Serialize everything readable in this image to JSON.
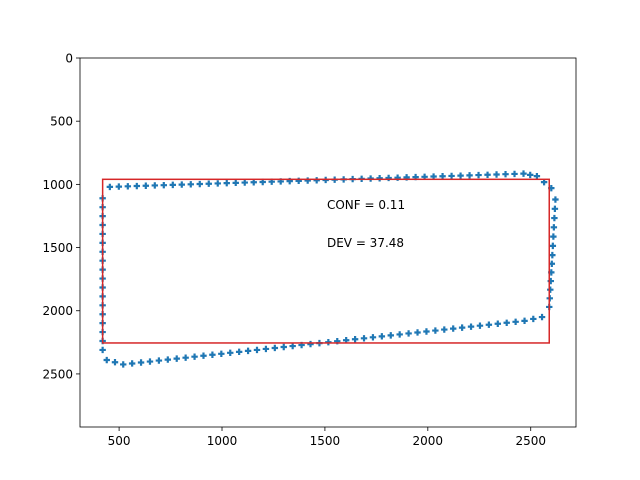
{
  "chart_data": {
    "type": "scatter",
    "xlim": [
      310,
      2720
    ],
    "ylim": [
      2920,
      0
    ],
    "y_inverted": true,
    "grid": false,
    "x_ticks": [
      500,
      1000,
      1500,
      2000,
      2500
    ],
    "y_ticks": [
      0,
      500,
      1000,
      1500,
      2000,
      2500
    ],
    "x_tick_labels": [
      "500",
      "1000",
      "1500",
      "2000",
      "2500"
    ],
    "y_tick_labels": [
      "0",
      "500",
      "1000",
      "1500",
      "2000",
      "2500"
    ],
    "marker": "plus",
    "series": [
      {
        "color": "#1f77b4",
        "vertices": [
          [
            455,
            1020
          ],
          [
            2465,
            915
          ],
          [
            2530,
            935
          ],
          [
            2600,
            1030
          ],
          [
            2620,
            1120
          ],
          [
            2605,
            1560
          ],
          [
            2590,
            1970
          ],
          [
            2555,
            2050
          ],
          [
            2470,
            2080
          ],
          [
            520,
            2425
          ],
          [
            440,
            2390
          ],
          [
            420,
            2310
          ],
          [
            420,
            1110
          ],
          [
            455,
            1020
          ]
        ]
      }
    ],
    "bounding_box": {
      "color": "#d62728",
      "x0": 420,
      "y0": 960,
      "x1": 2590,
      "y1": 2255
    },
    "annotations": [
      {
        "text": "CONF = 0.11",
        "x": 1510,
        "y": 1160
      },
      {
        "text": "DEV = 37.48",
        "x": 1510,
        "y": 1460
      }
    ]
  }
}
